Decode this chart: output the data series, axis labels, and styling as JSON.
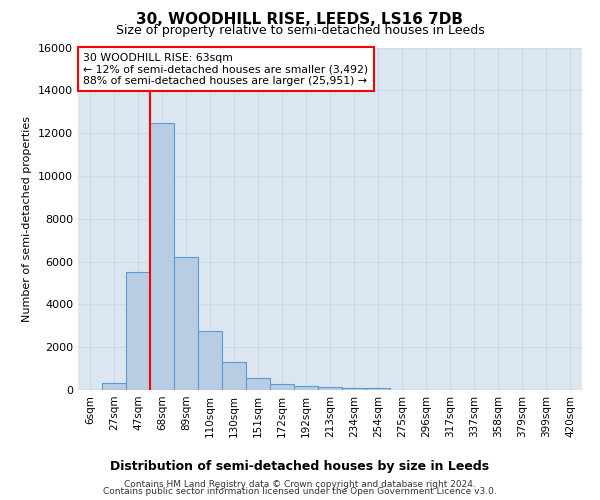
{
  "title": "30, WOODHILL RISE, LEEDS, LS16 7DB",
  "subtitle": "Size of property relative to semi-detached houses in Leeds",
  "xlabel": "Distribution of semi-detached houses by size in Leeds",
  "ylabel": "Number of semi-detached properties",
  "bar_labels": [
    "6sqm",
    "27sqm",
    "47sqm",
    "68sqm",
    "89sqm",
    "110sqm",
    "130sqm",
    "151sqm",
    "172sqm",
    "192sqm",
    "213sqm",
    "234sqm",
    "254sqm",
    "275sqm",
    "296sqm",
    "317sqm",
    "337sqm",
    "358sqm",
    "379sqm",
    "399sqm",
    "420sqm"
  ],
  "bar_heights": [
    0,
    320,
    5500,
    12450,
    6200,
    2750,
    1320,
    570,
    290,
    210,
    130,
    80,
    110,
    0,
    0,
    0,
    0,
    0,
    0,
    0,
    0
  ],
  "bar_color": "#b8cce4",
  "bar_edge_color": "#5b9bd5",
  "grid_color": "#d0d8e8",
  "background_color": "#dce6f1",
  "annotation_text": "30 WOODHILL RISE: 63sqm\n← 12% of semi-detached houses are smaller (3,492)\n88% of semi-detached houses are larger (25,951) →",
  "footnote_line1": "Contains HM Land Registry data © Crown copyright and database right 2024.",
  "footnote_line2": "Contains public sector information licensed under the Open Government Licence v3.0.",
  "ylim": [
    0,
    16000
  ],
  "yticks": [
    0,
    2000,
    4000,
    6000,
    8000,
    10000,
    12000,
    14000,
    16000
  ],
  "red_line_x": 2.5
}
